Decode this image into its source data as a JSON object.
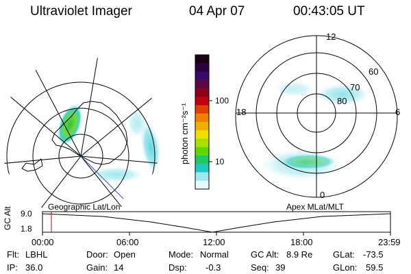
{
  "header": {
    "instrument": "Ultraviolet Imager",
    "date": "04 Apr 07",
    "time": "00:43:05 UT"
  },
  "colorbar": {
    "unit_label": "photon cm⁻²s⁻¹",
    "ticks": [
      "100",
      "10"
    ],
    "colors": [
      "#1a0010",
      "#2e0040",
      "#3a0a6a",
      "#5a0a40",
      "#8a0018",
      "#c00010",
      "#e04000",
      "#f08000",
      "#f0b000",
      "#f0e000",
      "#a8e000",
      "#60d800",
      "#20c860",
      "#20c8c0",
      "#a0e8f0",
      "#e8f8ff"
    ]
  },
  "left_map": {
    "label": "Geographic Lat/Lon"
  },
  "right_map": {
    "label": "Apex MLat/MLT",
    "mlt_labels": {
      "top": "12",
      "right": "6",
      "bottom": "0",
      "left": "18"
    },
    "lat_labels": [
      "60",
      "70",
      "80"
    ]
  },
  "altitude_plot": {
    "ylabel": "GC Alt",
    "ytick_top": "9.0",
    "ytick_bottom": "1.8",
    "xticks": [
      "00:00",
      "06:00",
      "12:00",
      "18:00",
      "23:59"
    ],
    "cursor_color": "#c00000"
  },
  "status": {
    "filter": {
      "label": "Flt:",
      "value": "LBHL"
    },
    "ip": {
      "label": "IP:",
      "value": "36.0"
    },
    "door": {
      "label": "Door:",
      "value": "Open"
    },
    "gain": {
      "label": "Gain:",
      "value": "14"
    },
    "mode": {
      "label": "Mode:",
      "value": "Normal"
    },
    "dsp": {
      "label": "Dsp:",
      "value": "-0.3"
    },
    "gc_alt": {
      "label": "GC Alt:",
      "value": "8.9 Re"
    },
    "seq": {
      "label": "Seq:",
      "value": "39"
    },
    "glat": {
      "label": "GLat:",
      "value": "-73.5"
    },
    "glon": {
      "label": "GLon:",
      "value": "59.5"
    }
  }
}
